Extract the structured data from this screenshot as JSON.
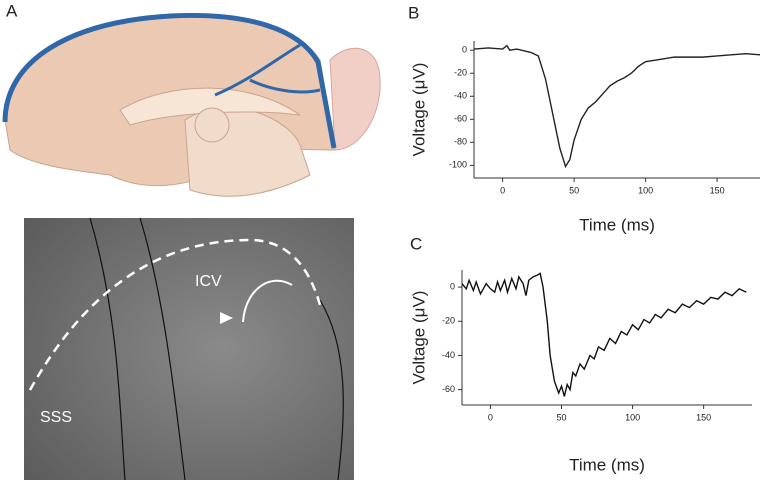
{
  "figure": {
    "panel_labels": [
      "A",
      "B",
      "C"
    ],
    "image_labels": [
      "ICV",
      "SSS"
    ]
  },
  "chart_data": [
    {
      "type": "line",
      "xlabel": "Time (ms)",
      "ylabel": "Voltage (μV)",
      "x": [
        -20,
        -10,
        0,
        3,
        5,
        10,
        20,
        25,
        30,
        35,
        40,
        44,
        47,
        50,
        55,
        60,
        65,
        70,
        75,
        80,
        85,
        90,
        95,
        100,
        110,
        120,
        130,
        140,
        150,
        160,
        170,
        180
      ],
      "series": [
        {
          "color": "#222222",
          "values": [
            1,
            2,
            1,
            4,
            0,
            1,
            -2,
            -5,
            -25,
            -55,
            -85,
            -101,
            -95,
            -78,
            -60,
            -50,
            -45,
            -38,
            -31,
            -27,
            -24,
            -20,
            -14,
            -10,
            -8,
            -6,
            -6,
            -6,
            -5,
            -4,
            -3,
            -4
          ]
        }
      ],
      "xlim": [
        -20,
        180
      ],
      "ylim": [
        -111,
        8
      ],
      "xticks": [
        0,
        50,
        100,
        150
      ],
      "yticks": [
        0,
        -20,
        -40,
        -60,
        -80,
        -100
      ]
    },
    {
      "type": "line",
      "xlabel": "Time (ms)",
      "ylabel": "Voltage (μV)",
      "x": [
        -20,
        -17,
        -15,
        -12,
        -10,
        -7,
        -5,
        -3,
        0,
        3,
        5,
        7,
        10,
        12,
        15,
        18,
        20,
        23,
        25,
        27,
        30,
        33,
        35,
        37,
        40,
        42,
        45,
        48,
        50,
        52,
        54,
        56,
        58,
        60,
        63,
        66,
        70,
        73,
        76,
        80,
        84,
        88,
        92,
        96,
        100,
        104,
        108,
        112,
        116,
        120,
        125,
        130,
        135,
        140,
        145,
        150,
        155,
        160,
        165,
        170,
        175,
        180
      ],
      "series": [
        {
          "color": "#111111",
          "values": [
            2,
            -1,
            4,
            -2,
            3,
            -4,
            -1,
            2,
            -1,
            -3,
            3,
            -2,
            4,
            -3,
            5,
            -1,
            6,
            2,
            -5,
            4,
            6,
            7,
            8,
            0,
            -20,
            -40,
            -55,
            -62,
            -58,
            -64,
            -57,
            -60,
            -50,
            -52,
            -45,
            -48,
            -40,
            -42,
            -35,
            -37,
            -30,
            -33,
            -26,
            -28,
            -22,
            -25,
            -19,
            -21,
            -16,
            -18,
            -13,
            -15,
            -10,
            -12,
            -8,
            -10,
            -6,
            -7,
            -3,
            -5,
            -1,
            -3
          ]
        }
      ],
      "xlim": [
        -20,
        184
      ],
      "ylim": [
        -69,
        10
      ],
      "xticks": [
        0,
        50,
        100,
        150
      ],
      "yticks": [
        0,
        -20,
        -40,
        -60
      ]
    }
  ]
}
